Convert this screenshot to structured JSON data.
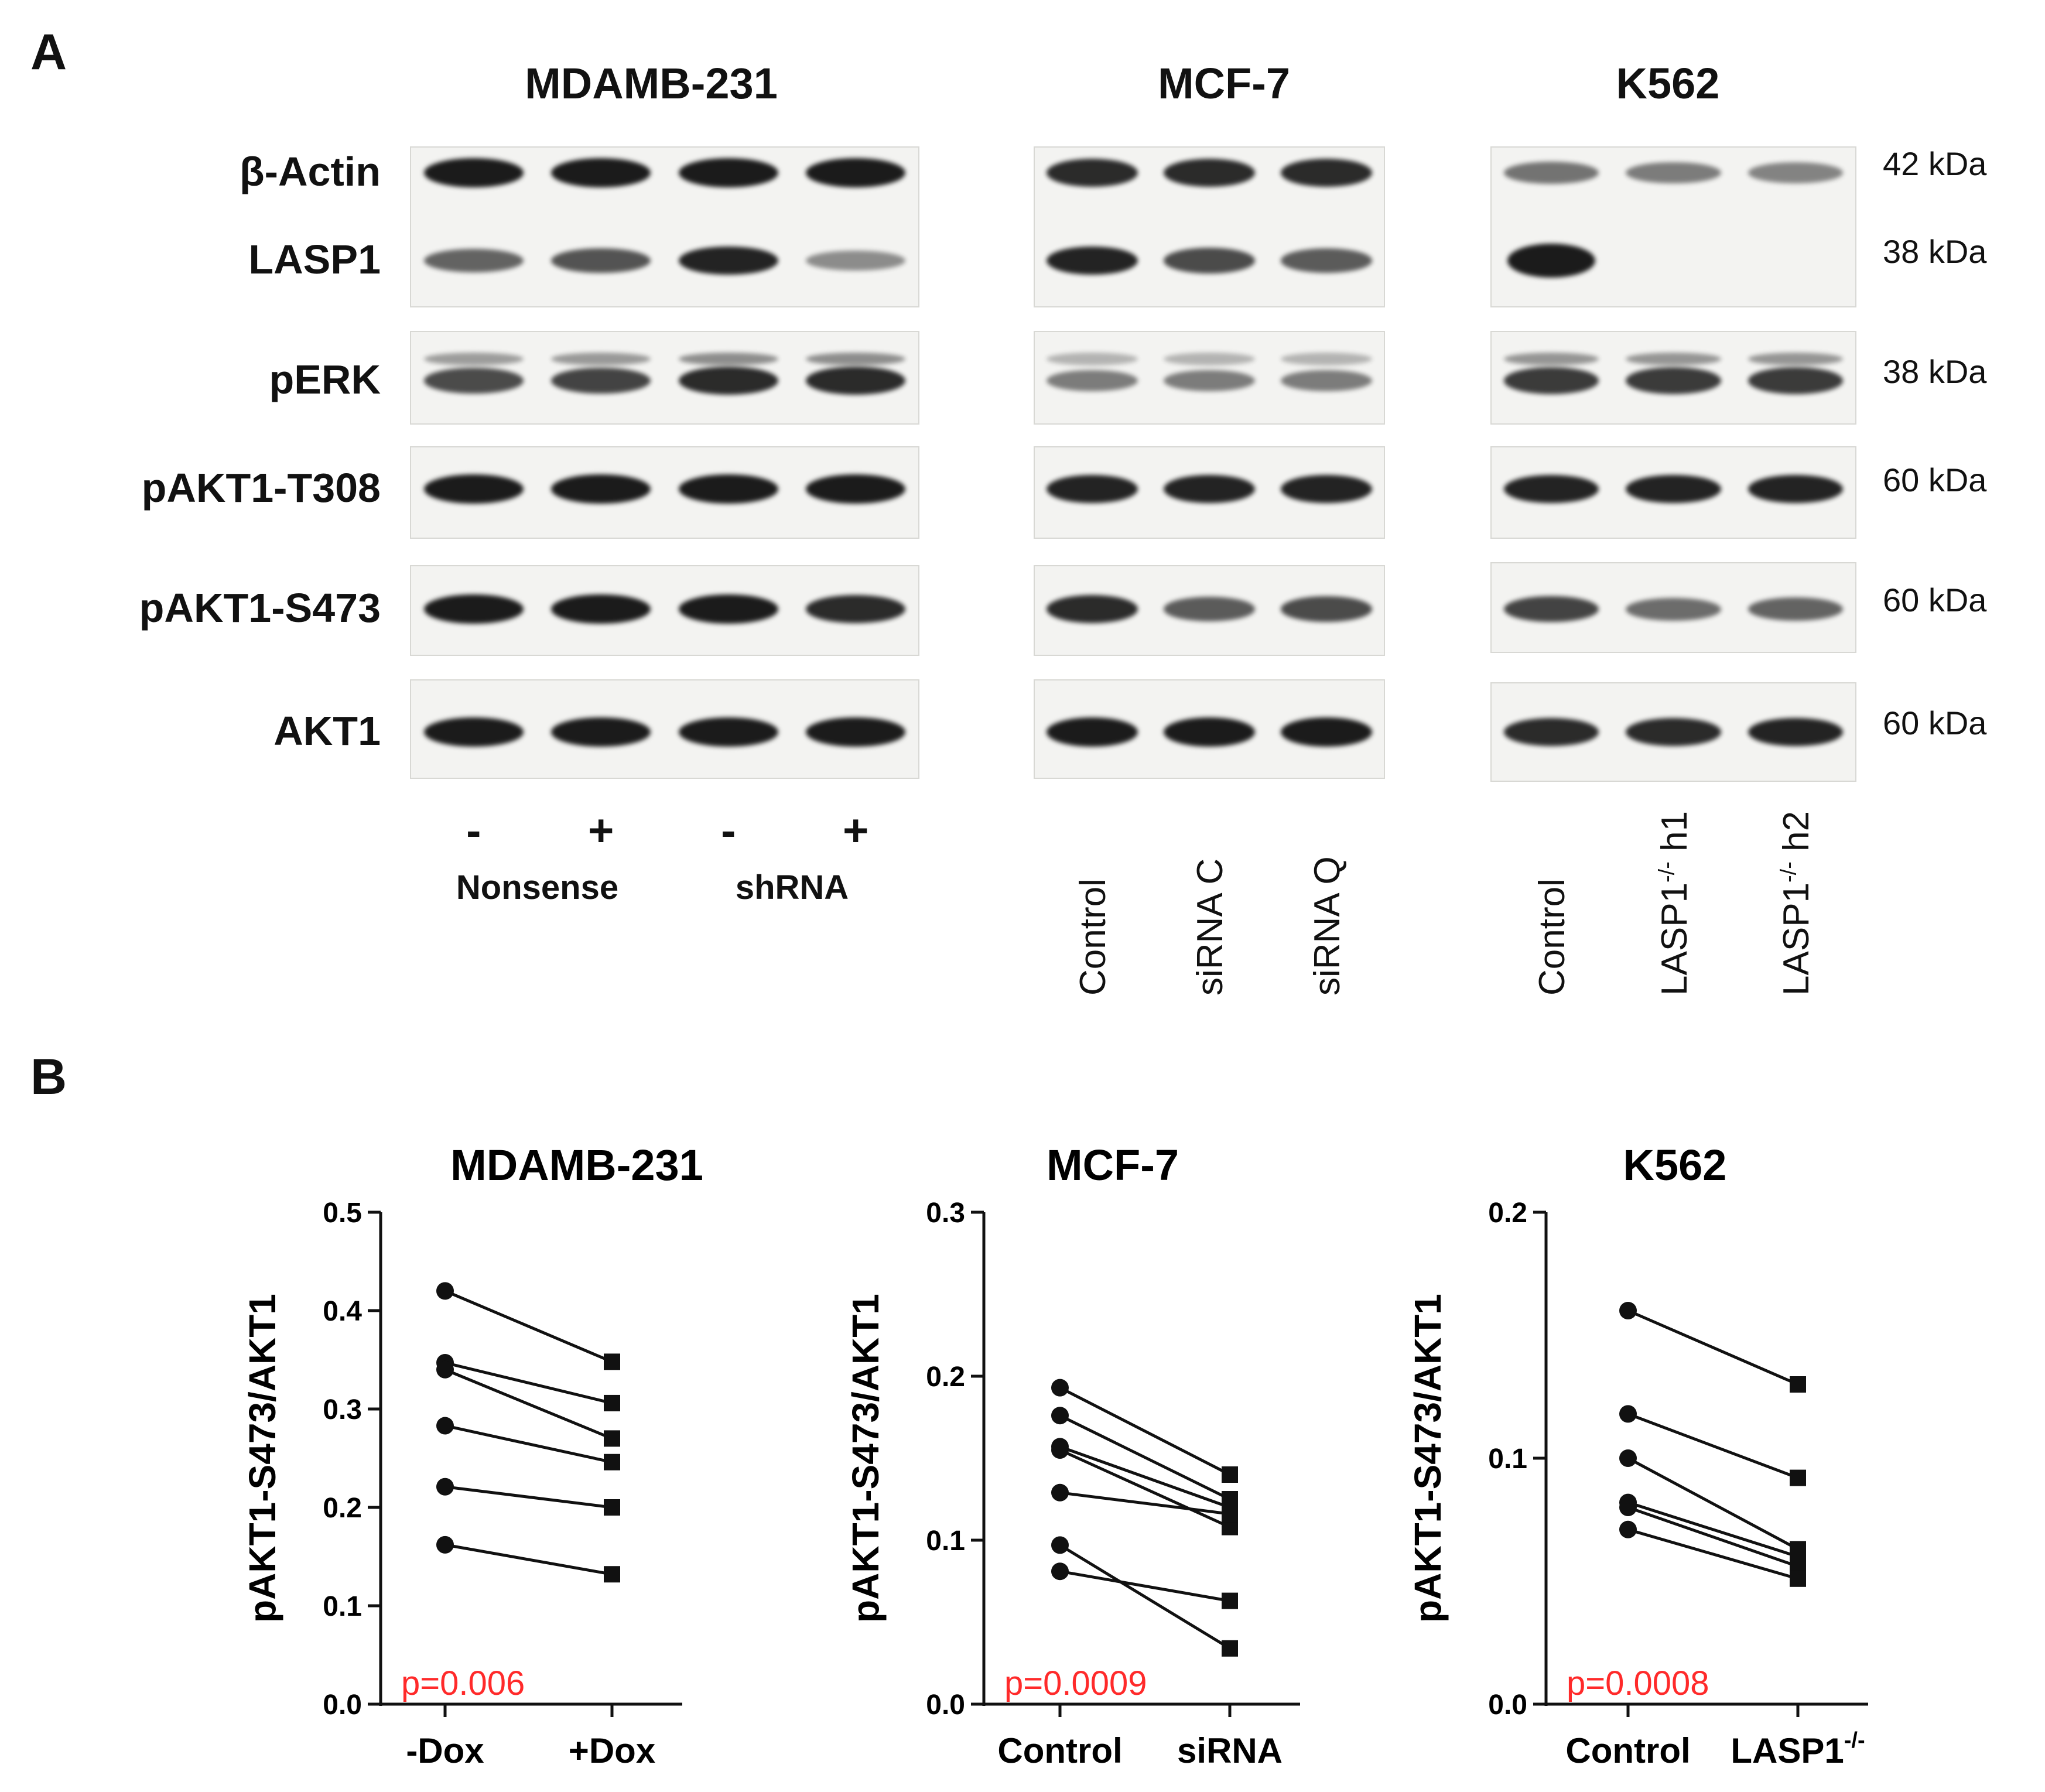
{
  "panel_a": {
    "letter": "A",
    "cells": [
      {
        "title": "MDAMB-231",
        "lanes": [
          {
            "label": "-"
          },
          {
            "label": "+"
          },
          {
            "label": "-"
          },
          {
            "label": "+"
          }
        ],
        "groups": [
          {
            "label": "Nonsense"
          },
          {
            "label": "shRNA"
          }
        ]
      },
      {
        "title": "MCF-7",
        "lanes": [
          {
            "label": "Control"
          },
          {
            "label": "siRNA C"
          },
          {
            "label": "siRNA Q"
          }
        ]
      },
      {
        "title": "K562",
        "lanes": [
          {
            "label": "Control"
          },
          {
            "label": "LASP1",
            "sup": "-/-",
            "suffix": " h1"
          },
          {
            "label": "LASP1",
            "sup": "-/-",
            "suffix": " h2"
          }
        ]
      }
    ],
    "rows": [
      {
        "label": "β-Actin",
        "kda": "42 kDa"
      },
      {
        "label": "LASP1",
        "kda": "38 kDa"
      },
      {
        "label": "pERK",
        "kda": "38 kDa"
      },
      {
        "label": "pAKT1-T308",
        "kda": "60 kDa"
      },
      {
        "label": "pAKT1-S473",
        "kda": "60 kDa"
      },
      {
        "label": "AKT1",
        "kda": "60 kDa"
      }
    ],
    "band_intensity": {
      "MDAMB-231": {
        "β-Actin": [
          1,
          1,
          1,
          1
        ],
        "LASP1": [
          0.55,
          0.65,
          0.95,
          0.3
        ],
        "pERK": [
          0.7,
          0.75,
          0.9,
          0.9
        ],
        "pAKT1-T308": [
          1,
          1,
          1,
          1
        ],
        "pAKT1-S473": [
          1,
          1,
          1,
          0.9
        ],
        "AKT1": [
          1,
          1,
          1,
          1
        ]
      },
      "MCF-7": {
        "β-Actin": [
          0.9,
          0.9,
          0.9
        ],
        "LASP1": [
          0.95,
          0.7,
          0.6
        ],
        "pERK": [
          0.4,
          0.4,
          0.4
        ],
        "pAKT1-T308": [
          0.95,
          0.95,
          0.95
        ],
        "pAKT1-S473": [
          0.9,
          0.6,
          0.7
        ],
        "AKT1": [
          1,
          1,
          1
        ]
      },
      "K562": {
        "β-Actin": [
          0.45,
          0.4,
          0.35
        ],
        "LASP1": [
          1,
          0,
          0
        ],
        "pERK": [
          0.8,
          0.8,
          0.8
        ],
        "pAKT1-T308": [
          0.95,
          0.95,
          0.95
        ],
        "pAKT1-S473": [
          0.75,
          0.5,
          0.55
        ],
        "AKT1": [
          0.9,
          0.9,
          0.95
        ]
      }
    }
  },
  "panel_b": {
    "letter": "B"
  },
  "chart_data": [
    {
      "type": "scatter",
      "title": "MDAMB-231",
      "ylabel": "pAKT1-S473/AKT1",
      "ylim": [
        0,
        0.5
      ],
      "yticks": [
        "0.0",
        "0.1",
        "0.2",
        "0.3",
        "0.4",
        "0.5"
      ],
      "categories": [
        "-Dox",
        "+Dox"
      ],
      "pairs": [
        [
          0.42,
          0.348
        ],
        [
          0.347,
          0.306
        ],
        [
          0.34,
          0.27
        ],
        [
          0.283,
          0.246
        ],
        [
          0.221,
          0.2
        ],
        [
          0.162,
          0.132
        ]
      ],
      "annotation": "p=0.006"
    },
    {
      "type": "scatter",
      "title": "MCF-7",
      "ylabel": "pAKT1-S473/AKT1",
      "ylim": [
        0,
        0.3
      ],
      "yticks": [
        "0.0",
        "0.1",
        "0.2",
        "0.3"
      ],
      "categories": [
        "Control",
        "siRNA"
      ],
      "pairs": [
        [
          0.193,
          0.14
        ],
        [
          0.176,
          0.125
        ],
        [
          0.157,
          0.12
        ],
        [
          0.155,
          0.108
        ],
        [
          0.129,
          0.116
        ],
        [
          0.097,
          0.034
        ],
        [
          0.081,
          0.063
        ]
      ],
      "annotation": "p=0.0009"
    },
    {
      "type": "scatter",
      "title": "K562",
      "ylabel": "pAKT1-S473/AKT1",
      "ylim": [
        0,
        0.2
      ],
      "yticks": [
        "0.0",
        "0.1",
        "0.2"
      ],
      "categories": [
        "Control",
        "LASP1"
      ],
      "category_sup": [
        "",
        "-/-"
      ],
      "pairs": [
        [
          0.16,
          0.13
        ],
        [
          0.118,
          0.092
        ],
        [
          0.1,
          0.063
        ],
        [
          0.082,
          0.06
        ],
        [
          0.08,
          0.056
        ],
        [
          0.071,
          0.051
        ]
      ],
      "annotation": "p=0.0008"
    }
  ]
}
